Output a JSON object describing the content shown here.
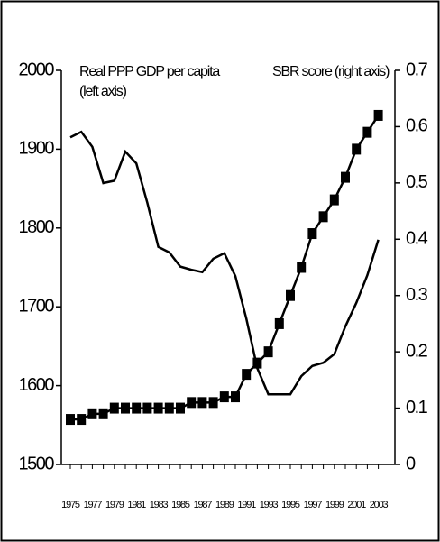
{
  "chart_data": {
    "type": "line",
    "annotations": [
      "Real PPP GDP per capita",
      "(left axis)",
      "SBR score (right axis)"
    ],
    "categories": [
      "1975",
      null,
      "1977",
      null,
      "1979",
      null,
      "1981",
      null,
      "1983",
      null,
      "1985",
      null,
      "1987",
      null,
      "1989",
      null,
      "1991",
      null,
      "1993",
      null,
      "1995",
      null,
      "1997",
      null,
      "1999",
      null,
      "2001",
      null,
      "2003"
    ],
    "series": [
      {
        "color": "#000000",
        "marker": "none",
        "values": [
          1915,
          1922,
          1903,
          1857,
          1860,
          1897,
          1882,
          1832,
          1776,
          1769,
          1751,
          1747,
          1744,
          1761,
          1768,
          1739,
          1685,
          1622,
          1589,
          1589,
          1589,
          1612,
          1625,
          1629,
          1640,
          1675,
          1705,
          1740,
          1785
        ]
      },
      {
        "color": "#000000",
        "marker": "square",
        "axis": "y2",
        "values": [
          0.08,
          0.08,
          0.09,
          0.09,
          0.1,
          0.1,
          0.1,
          0.1,
          0.1,
          0.1,
          0.1,
          0.11,
          0.11,
          0.11,
          0.12,
          0.12,
          0.16,
          0.18,
          0.2,
          0.25,
          0.3,
          0.35,
          0.41,
          0.44,
          0.47,
          0.51,
          0.56,
          0.59,
          0.62
        ]
      }
    ],
    "ylim": [
      1500,
      2000
    ],
    "yticks": [
      1500,
      1600,
      1700,
      1800,
      1900,
      2000
    ],
    "y2lim": [
      0,
      0.7
    ],
    "y2ticks": [
      0,
      0.1,
      0.2,
      0.3,
      0.4,
      0.5,
      0.6,
      0.7
    ]
  }
}
